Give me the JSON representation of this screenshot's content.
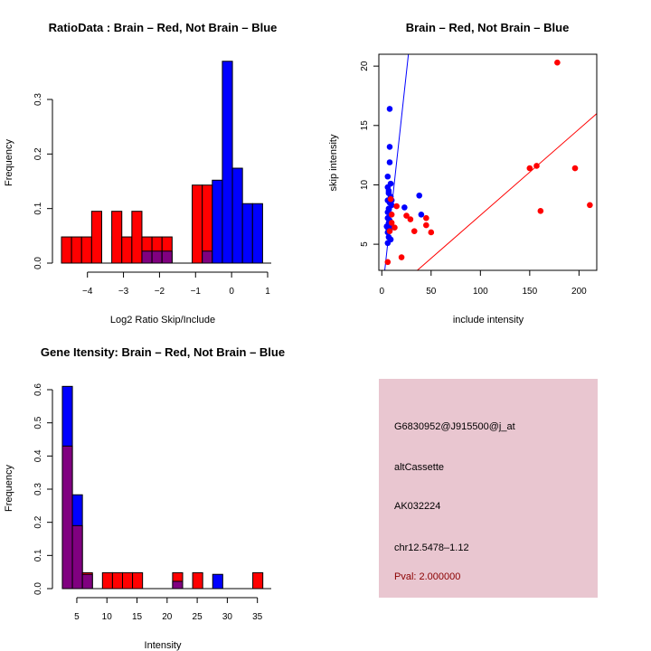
{
  "colors": {
    "brain": "#ff0000",
    "not_brain": "#0000ff",
    "overlap": "#800080",
    "info_bg": "#e9c6d0",
    "pval": "#8b0000"
  },
  "chart_data": [
    {
      "id": "ratio-hist",
      "type": "bar",
      "title": "RatioData : Brain – Red, Not Brain – Blue",
      "xlabel": "Log2 Ratio Skip/Include",
      "ylabel": "Frequency",
      "xlim": [
        -4.72,
        1.0
      ],
      "ylim": [
        0,
        0.3
      ],
      "xticks": [
        -4,
        -3,
        -2,
        -1,
        0,
        1
      ],
      "xtick_labels": [
        "−4",
        "−3",
        "−2",
        "−1",
        "0",
        "1"
      ],
      "yticks": [
        0.0,
        0.1,
        0.2,
        0.3
      ],
      "ytick_labels": [
        "0.0",
        "0.1",
        "0.2",
        "0.3"
      ],
      "bin_start": -4.72,
      "bin_width": 0.279,
      "series": [
        {
          "name": "Brain",
          "color": "#ff0000",
          "values": [
            0.048,
            0.048,
            0.048,
            0.095,
            0,
            0.095,
            0.048,
            0.095,
            0.048,
            0.048,
            0.048,
            0,
            0,
            0.143,
            0.143,
            0,
            0,
            0,
            0,
            0
          ]
        },
        {
          "name": "Not Brain",
          "color": "#0000ff",
          "values": [
            0,
            0,
            0,
            0,
            0,
            0,
            0,
            0,
            0.022,
            0.022,
            0.022,
            0,
            0,
            0,
            0.022,
            0.152,
            0.37,
            0.174,
            0.109,
            0.109
          ]
        }
      ]
    },
    {
      "id": "intensity-scatter",
      "type": "scatter",
      "title": "Brain – Red, Not Brain – Blue",
      "xlabel": "include intensity",
      "ylabel": "skip intensity",
      "xlim": [
        -3,
        218
      ],
      "ylim": [
        2.8,
        21.0
      ],
      "xticks": [
        0,
        50,
        100,
        150,
        200
      ],
      "xtick_labels": [
        "0",
        "50",
        "100",
        "150",
        "200"
      ],
      "yticks": [
        5,
        10,
        15,
        20
      ],
      "ytick_labels": [
        "5",
        "10",
        "15",
        "20"
      ],
      "series": [
        {
          "name": "Brain",
          "color": "#ff0000",
          "points": [
            [
              178,
              20.3
            ],
            [
              150,
              11.4
            ],
            [
              157,
              11.6
            ],
            [
              196,
              11.4
            ],
            [
              161,
              7.8
            ],
            [
              211,
              8.3
            ],
            [
              6,
              3.5
            ],
            [
              20,
              3.9
            ],
            [
              13,
              6.4
            ],
            [
              10,
              6.8
            ],
            [
              10,
              7.5
            ],
            [
              15,
              8.2
            ],
            [
              25,
              7.4
            ],
            [
              29,
              7.1
            ],
            [
              33,
              6.1
            ],
            [
              45,
              7.2
            ],
            [
              45,
              6.6
            ],
            [
              50,
              6.0
            ],
            [
              9,
              8.8
            ],
            [
              8,
              6.1
            ]
          ]
        },
        {
          "name": "Not Brain",
          "color": "#0000ff",
          "points": [
            [
              8,
              16.4
            ],
            [
              8,
              13.2
            ],
            [
              8,
              11.9
            ],
            [
              6,
              10.7
            ],
            [
              9,
              10.1
            ],
            [
              6,
              9.8
            ],
            [
              7,
              9.3
            ],
            [
              9,
              9.0
            ],
            [
              6,
              8.7
            ],
            [
              8,
              8.5
            ],
            [
              10,
              8.3
            ],
            [
              7,
              8.0
            ],
            [
              6,
              7.7
            ],
            [
              9,
              7.5
            ],
            [
              6,
              7.2
            ],
            [
              8,
              7.0
            ],
            [
              7,
              6.8
            ],
            [
              9,
              6.6
            ],
            [
              6,
              6.4
            ],
            [
              8,
              6.2
            ],
            [
              6,
              6.0
            ],
            [
              7,
              5.6
            ],
            [
              9,
              5.4
            ],
            [
              6,
              5.1
            ],
            [
              38,
              9.1
            ],
            [
              23,
              8.1
            ],
            [
              40,
              7.5
            ],
            [
              10,
              8.7
            ],
            [
              7,
              9.5
            ],
            [
              5,
              6.5
            ]
          ]
        }
      ],
      "fit_lines": [
        {
          "name": "Not Brain fit",
          "color": "#0000ff",
          "from": [
            3,
            2.8
          ],
          "to": [
            27,
            21.0
          ]
        },
        {
          "name": "Brain fit",
          "color": "#ff0000",
          "from": [
            36,
            2.8
          ],
          "to": [
            218,
            16.0
          ]
        }
      ]
    },
    {
      "id": "gene-intensity-hist",
      "type": "bar",
      "title": "Gene Itensity: Brain – Red, Not Brain – Blue",
      "xlabel": "Intensity",
      "ylabel": "Frequency",
      "xlim": [
        0.2,
        37.0
      ],
      "ylim": [
        0,
        0.6
      ],
      "xticks": [
        5,
        10,
        15,
        20,
        25,
        30,
        35
      ],
      "xtick_labels": [
        "5",
        "10",
        "15",
        "20",
        "25",
        "30",
        "35"
      ],
      "yticks": [
        0.0,
        0.1,
        0.2,
        0.3,
        0.4,
        0.5,
        0.6
      ],
      "ytick_labels": [
        "0.0",
        "0.1",
        "0.2",
        "0.3",
        "0.4",
        "0.5",
        "0.6"
      ],
      "bin_start": 2.6,
      "bin_width": 1.665,
      "series": [
        {
          "name": "Brain",
          "color": "#ff0000",
          "values": [
            0.43,
            0.19,
            0.048,
            0,
            0.048,
            0.048,
            0.048,
            0.048,
            0,
            0,
            0,
            0.048,
            0,
            0.048,
            0,
            0,
            0,
            0,
            0,
            0.048
          ]
        },
        {
          "name": "Not Brain",
          "color": "#0000ff",
          "values": [
            0.61,
            0.283,
            0.043,
            0,
            0,
            0,
            0,
            0,
            0,
            0,
            0,
            0.022,
            0,
            0,
            0,
            0.043,
            0,
            0,
            0,
            0
          ]
        }
      ]
    }
  ],
  "info_panel": {
    "probe_id": "G6830952@J915500@j_at",
    "event_type": "altCassette",
    "accession": "AK032224",
    "location": "chr12.5478–1.12",
    "pval": "Pval: 2.000000"
  }
}
